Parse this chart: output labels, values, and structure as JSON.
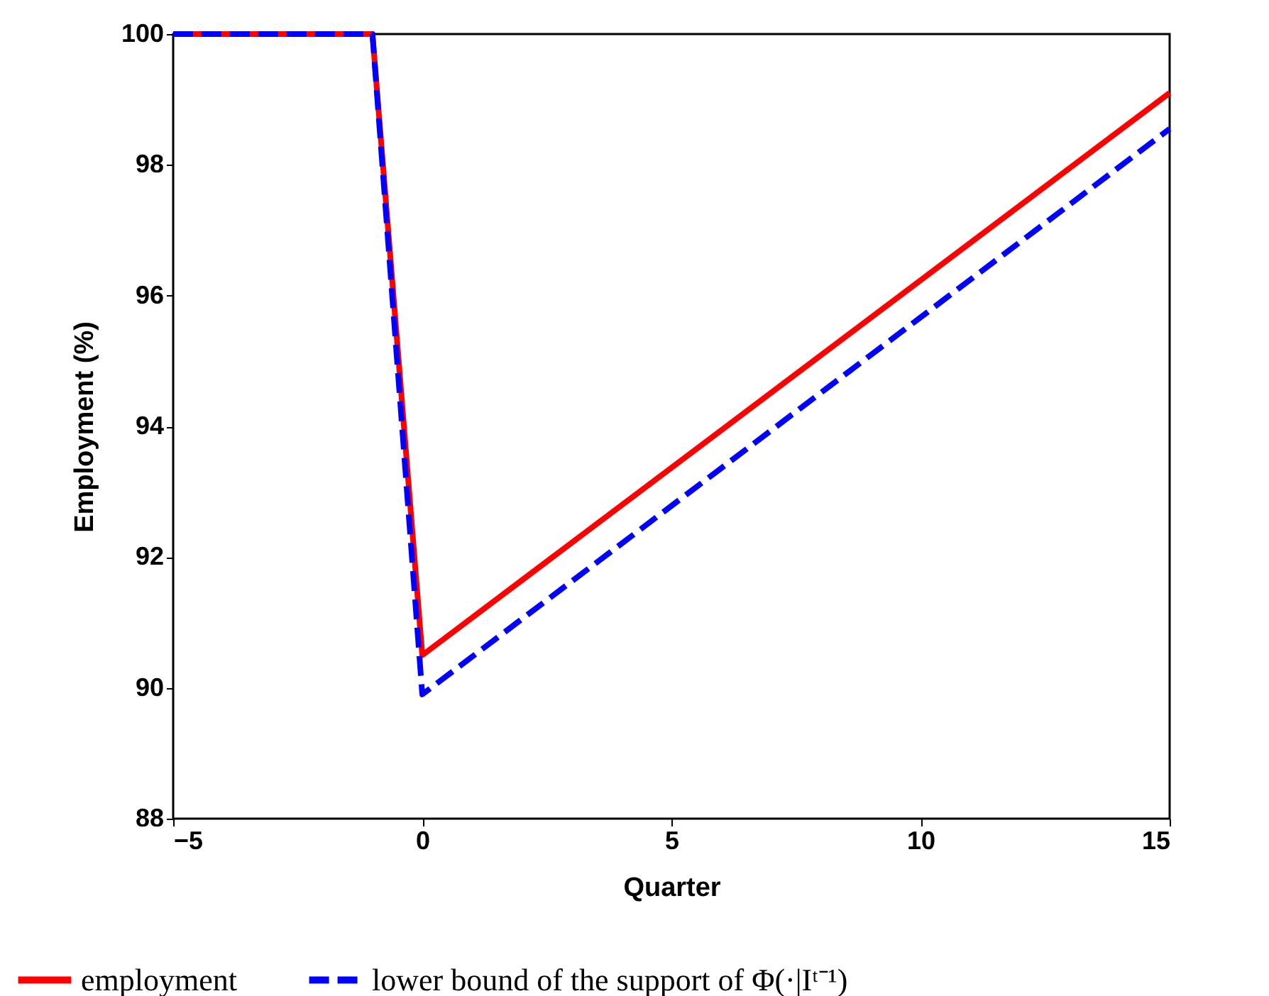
{
  "chart_data": {
    "type": "line",
    "xlabel": "Quarter",
    "ylabel": "Employment (%)",
    "x": [
      -5,
      -1,
      0,
      15
    ],
    "series": [
      {
        "name": "employment",
        "color": "#ff0000",
        "line_style": "solid",
        "values": [
          100,
          100,
          90.5,
          99.1
        ]
      },
      {
        "name": "lower bound of the support of Φ(·|Iᵗ⁻¹)",
        "color": "#0000ff",
        "line_style": "dashed",
        "values": [
          100,
          100,
          89.9,
          98.55
        ]
      }
    ],
    "xlim": [
      -5,
      15
    ],
    "xticks": [
      -5,
      0,
      5,
      10,
      15
    ],
    "ylim": [
      88,
      100
    ],
    "yticks": [
      88,
      90,
      92,
      94,
      96,
      98,
      100
    ],
    "grid": false,
    "legend": "bottom",
    "marker": "none"
  }
}
